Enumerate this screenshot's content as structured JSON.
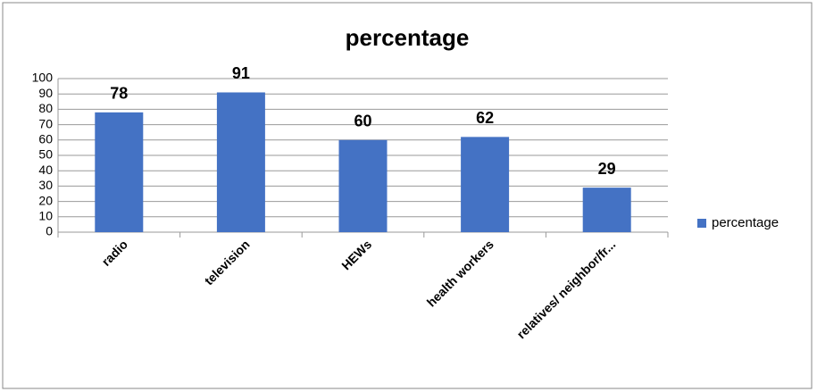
{
  "chart_data": {
    "type": "bar",
    "title": "percentage",
    "categories": [
      "radio",
      "television",
      "HEWs",
      "health workers",
      "relatives/ neighbor/fr..."
    ],
    "series": [
      {
        "name": "percentage",
        "color": "#4472c4",
        "values": [
          78,
          91,
          60,
          62,
          29
        ]
      }
    ],
    "ylim": [
      0,
      100
    ],
    "yticks": [
      0,
      10,
      20,
      30,
      40,
      50,
      60,
      70,
      80,
      90,
      100
    ],
    "grid": true,
    "legend": "right"
  }
}
